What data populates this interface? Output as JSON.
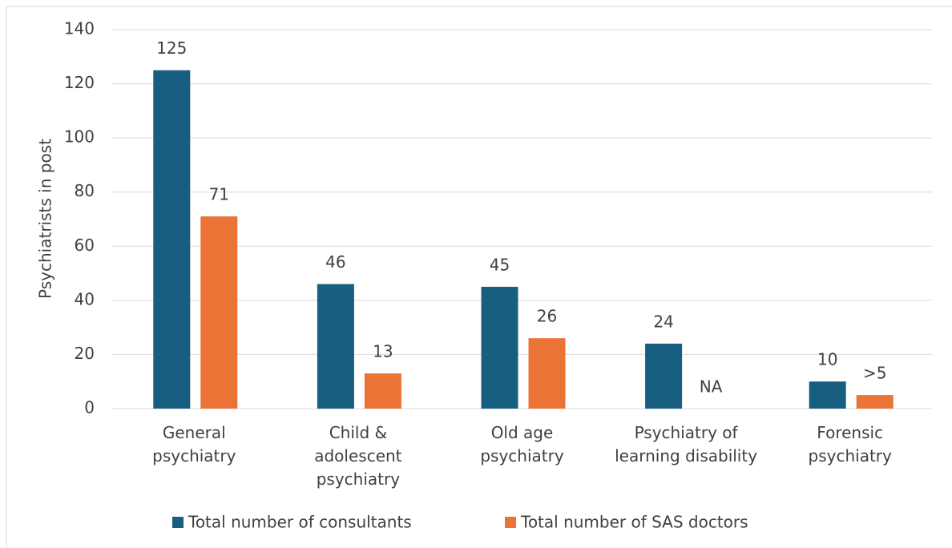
{
  "chart_data": {
    "type": "bar",
    "y_label": "Psychiatrists in post",
    "categories": [
      "General psychiatry",
      "Child & adolescent psychiatry",
      "Old age psychiatry",
      "Psychiatry of learning disability",
      "Forensic psychiatry"
    ],
    "series": [
      {
        "name": "Total number of consultants",
        "color": "#175e80",
        "values": [
          125,
          46,
          45,
          24,
          10
        ]
      },
      {
        "name": "Total number of SAS doctors",
        "color": "#ea7335",
        "values": [
          71,
          13,
          26,
          null,
          5
        ],
        "value_labels": [
          "71",
          "13",
          "26",
          "NA",
          ">5"
        ]
      }
    ],
    "ylim": [
      0,
      140
    ],
    "yticks": [
      0,
      20,
      40,
      60,
      80,
      100,
      120,
      140
    ],
    "grid": true,
    "legend": "bottom"
  }
}
